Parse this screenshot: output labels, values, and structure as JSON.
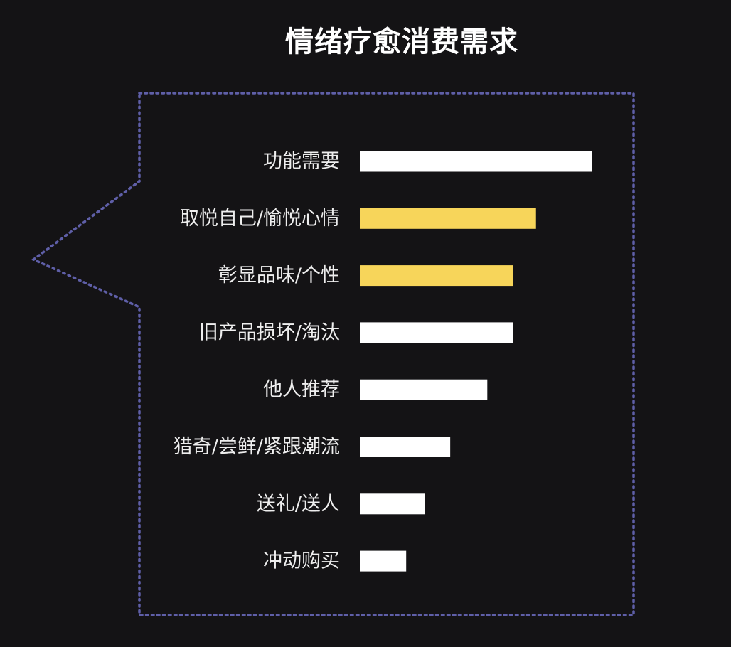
{
  "chart_data": {
    "type": "bar",
    "orientation": "horizontal",
    "title": "情绪疗愈消费需求",
    "categories": [
      "功能需要",
      "取悦自己/愉悦心情",
      "彰显品味/个性",
      "旧产品损坏/淘汰",
      "他人推荐",
      "猎奇/尝鲜/紧跟潮流",
      "送礼/送人",
      "冲动购买"
    ],
    "values": [
      100,
      76,
      66,
      66,
      55,
      39,
      28,
      20
    ],
    "highlighted": [
      false,
      true,
      true,
      false,
      false,
      false,
      false,
      false
    ],
    "xlim": [
      0,
      100
    ],
    "grid": false,
    "axis_ticks_shown": false
  },
  "colors": {
    "background": "#141315",
    "bar_default": "#ffffff",
    "bar_highlight": "#f7d55a",
    "frame": "#5f5fa8",
    "label": "#eeeeee",
    "title": "#ffffff"
  }
}
